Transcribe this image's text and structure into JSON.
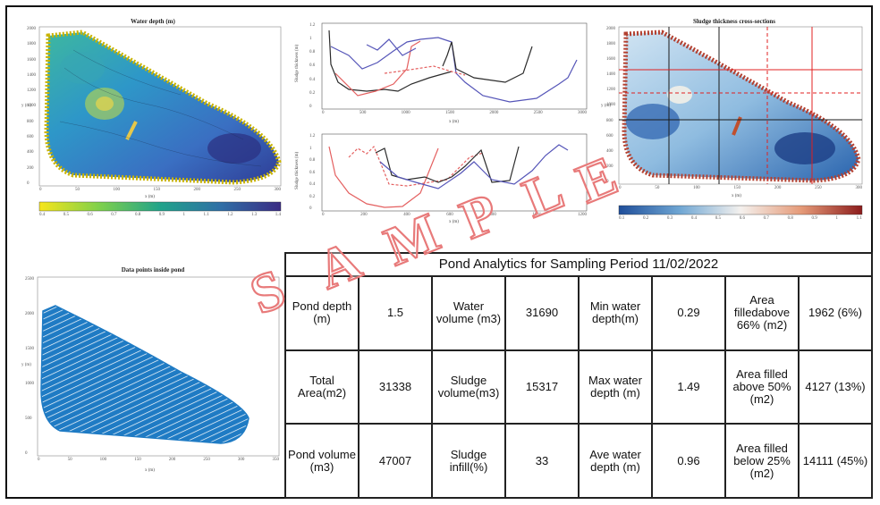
{
  "panels": {
    "water_depth": {
      "title": "Water depth (m)",
      "xlabel": "x (m)",
      "ylabel": "y (m)",
      "x_ticks": [
        "0",
        "50",
        "100",
        "150",
        "200",
        "250",
        "300"
      ],
      "y_ticks": [
        "2000",
        "1800",
        "1600",
        "1400",
        "1200",
        "1000",
        "800",
        "600",
        "400",
        "200",
        "0"
      ],
      "colorbar_ticks": [
        "0.4",
        "0.5",
        "0.6",
        "0.7",
        "0.8",
        "0.9",
        "1",
        "1.1",
        "1.2",
        "1.3",
        "1.4"
      ]
    },
    "cross_section_top": {
      "ylabel": "Sludge thickness (m)",
      "xlabel": "x (m)",
      "x_ticks": [
        "0",
        "500",
        "1000",
        "1500",
        "2000",
        "2500",
        "3000"
      ],
      "y_ticks": [
        "1.2",
        "1",
        "0.8",
        "0.6",
        "0.4",
        "0.2",
        "0"
      ]
    },
    "cross_section_bottom": {
      "ylabel": "Sludge thickness (m)",
      "xlabel": "x (m)",
      "x_ticks": [
        "0",
        "200",
        "400",
        "600",
        "800",
        "1000",
        "1200"
      ],
      "y_ticks": [
        "1.2",
        "1",
        "0.8",
        "0.6",
        "0.4",
        "0.2",
        "0"
      ]
    },
    "sludge_thickness": {
      "title": "Sludge thickness cross-sections",
      "xlabel": "x (m)",
      "ylabel": "y (m)",
      "x_ticks": [
        "0",
        "50",
        "100",
        "150",
        "200",
        "250",
        "300"
      ],
      "y_ticks": [
        "2000",
        "1800",
        "1600",
        "1400",
        "1200",
        "1000",
        "800",
        "600",
        "400",
        "200",
        "0"
      ],
      "colorbar_ticks": [
        "0.1",
        "0.2",
        "0.3",
        "0.4",
        "0.5",
        "0.6",
        "0.7",
        "0.8",
        "0.9",
        "1",
        "1.1"
      ]
    },
    "data_points": {
      "title": "Data points inside pond",
      "xlabel": "x (m)",
      "ylabel": "y (m)",
      "x_ticks": [
        "0",
        "50",
        "100",
        "150",
        "200",
        "250",
        "300",
        "350"
      ],
      "y_ticks": [
        "2500",
        "2000",
        "1500",
        "1000",
        "500",
        "0"
      ]
    }
  },
  "analytics": {
    "title": "Pond Analytics for Sampling Period 11/02/2022",
    "rows": [
      [
        {
          "label": "Pond depth (m)",
          "value": "1.5"
        },
        {
          "label": "Water volume (m3)",
          "value": "31690"
        },
        {
          "label": "Min water depth(m)",
          "value": "0.29"
        },
        {
          "label": "Area filledabove 66% (m2)",
          "value": "1962 (6%)"
        }
      ],
      [
        {
          "label": "Total Area(m2)",
          "value": "31338"
        },
        {
          "label": "Sludge volume(m3)",
          "value": "15317"
        },
        {
          "label": "Max water depth (m)",
          "value": "1.49"
        },
        {
          "label": "Area filled above 50%(m2)",
          "value": "4127 (13%)"
        }
      ],
      [
        {
          "label": "Pond volume (m3)",
          "value": "47007"
        },
        {
          "label": "Sludge infill(%)",
          "value": "33"
        },
        {
          "label": "Ave water depth (m)",
          "value": "0.96"
        },
        {
          "label": "Area filled below 25% (m2)",
          "value": "14111 (45%)"
        }
      ]
    ]
  },
  "watermark": {
    "letters": [
      "S",
      "A",
      "M",
      "P",
      "L",
      "E"
    ]
  },
  "colors": {
    "watermark": "#e87a7a",
    "table_border": "#222222",
    "data_points_blue": "#1f7bc4"
  }
}
